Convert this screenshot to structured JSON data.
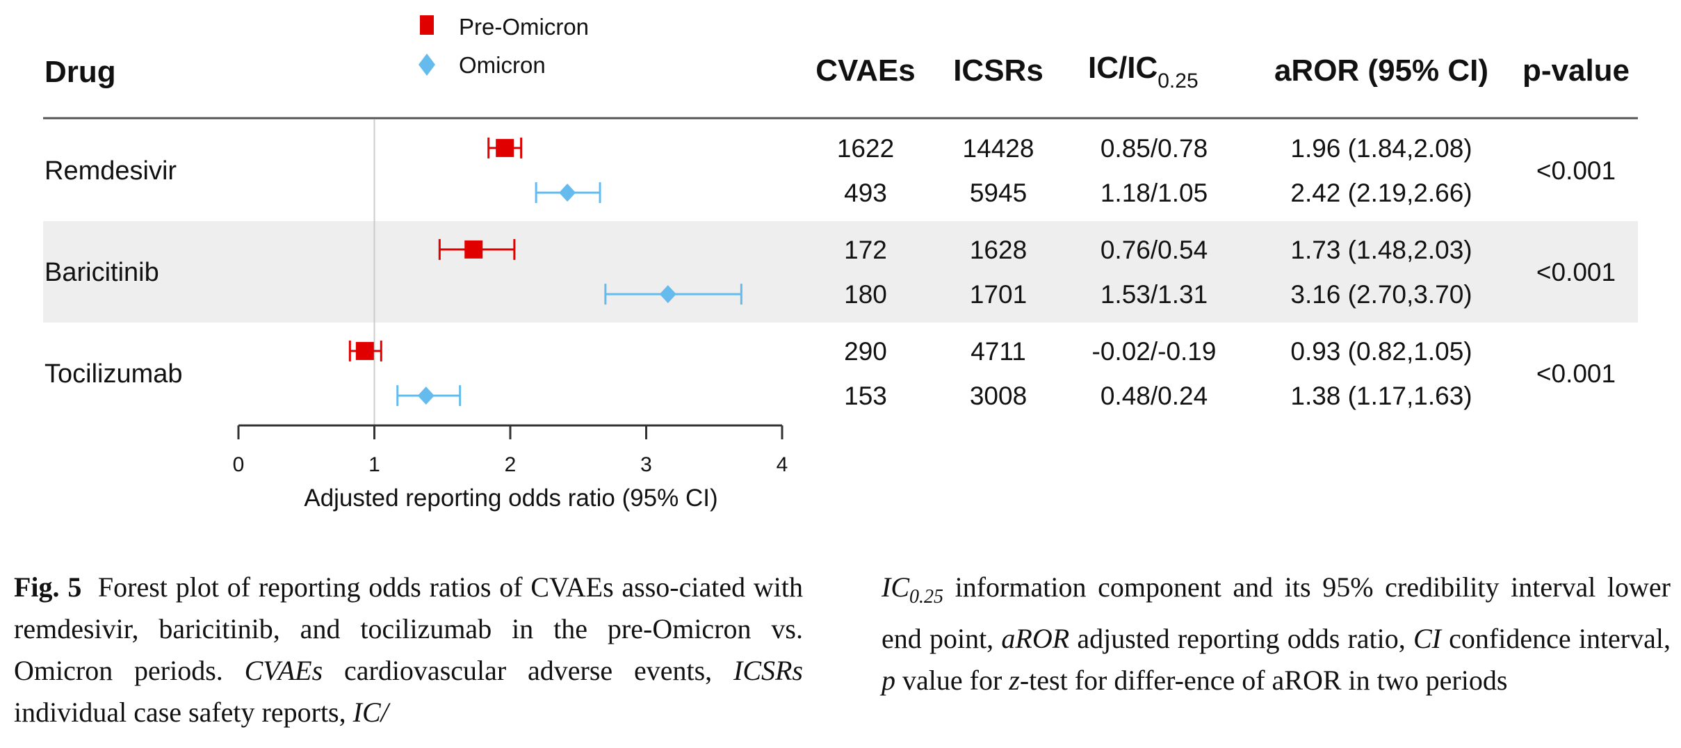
{
  "chart_data": {
    "type": "forest",
    "title": "",
    "xlabel": "Adjusted reporting odds ratio (95% CI)",
    "xlim": [
      0,
      4
    ],
    "xticks": [
      "0",
      "1",
      "2",
      "3",
      "4"
    ],
    "reference_line": 1,
    "legend": {
      "placement": "top",
      "entries": [
        {
          "name": "Pre-Omicron",
          "marker": "square",
          "color": "#e00000"
        },
        {
          "name": "Omicron",
          "marker": "diamond",
          "color": "#66bbee"
        }
      ]
    },
    "columns": {
      "drug": "Drug",
      "cvaes": "CVAEs",
      "icsrs": "ICSRs",
      "ic_main": "IC/IC",
      "ic_sub": "0.25",
      "aror": "aROR (95% CI)",
      "pvalue": "p-value"
    },
    "rows": [
      {
        "drug": "Remdesivir",
        "shaded": false,
        "pvalue": "<0.001",
        "series": [
          {
            "period": "Pre-Omicron",
            "cvaes": "1622",
            "icsrs": "14428",
            "ic": "0.85/0.78",
            "aror_text": "1.96 (1.84,2.08)",
            "est": 1.96,
            "lo": 1.84,
            "hi": 2.08
          },
          {
            "period": "Omicron",
            "cvaes": "493",
            "icsrs": "5945",
            "ic": "1.18/1.05",
            "aror_text": "2.42 (2.19,2.66)",
            "est": 2.42,
            "lo": 2.19,
            "hi": 2.66
          }
        ]
      },
      {
        "drug": "Baricitinib",
        "shaded": true,
        "pvalue": "<0.001",
        "series": [
          {
            "period": "Pre-Omicron",
            "cvaes": "172",
            "icsrs": "1628",
            "ic": "0.76/0.54",
            "aror_text": "1.73 (1.48,2.03)",
            "est": 1.73,
            "lo": 1.48,
            "hi": 2.03
          },
          {
            "period": "Omicron",
            "cvaes": "180",
            "icsrs": "1701",
            "ic": "1.53/1.31",
            "aror_text": "3.16 (2.70,3.70)",
            "est": 3.16,
            "lo": 2.7,
            "hi": 3.7
          }
        ]
      },
      {
        "drug": "Tocilizumab",
        "shaded": false,
        "pvalue": "<0.001",
        "series": [
          {
            "period": "Pre-Omicron",
            "cvaes": "290",
            "icsrs": "4711",
            "ic": "-0.02/-0.19",
            "aror_text": "0.93 (0.82,1.05)",
            "est": 0.93,
            "lo": 0.82,
            "hi": 1.05
          },
          {
            "period": "Omicron",
            "cvaes": "153",
            "icsrs": "3008",
            "ic": "0.48/0.24",
            "aror_text": "1.38 (1.17,1.63)",
            "est": 1.38,
            "lo": 1.17,
            "hi": 1.63
          }
        ]
      }
    ],
    "colors": {
      "shade": "#eeeeee",
      "rule": "#555555",
      "refline": "#cccccc",
      "axis": "#333333"
    }
  },
  "caption": {
    "fig_label": "Fig. 5",
    "left": [
      {
        "t": "Forest plot of reporting odds ratios of CVAEs asso-ciated with remdesivir, baricitinib, and tocilizumab in the pre-Omicron vs. Omicron periods. ",
        "i": false
      },
      {
        "t": "CVAEs",
        "i": true
      },
      {
        "t": " cardiovascular adverse events, ",
        "i": false
      },
      {
        "t": "ICSRs",
        "i": true
      },
      {
        "t": " individual case safety reports, ",
        "i": false
      },
      {
        "t": "IC/",
        "i": true
      }
    ],
    "right_ic": "IC",
    "right_ic_sub": "0.25",
    "right": [
      {
        "t": " information component and its 95% credibility interval lower end point, ",
        "i": false
      },
      {
        "t": "aROR",
        "i": true
      },
      {
        "t": " adjusted reporting odds ratio, ",
        "i": false
      },
      {
        "t": "CI",
        "i": true
      },
      {
        "t": " confidence interval, ",
        "i": false
      },
      {
        "t": "p",
        "i": true
      },
      {
        "t": " value for ",
        "i": false
      },
      {
        "t": "z",
        "i": true
      },
      {
        "t": "-test for differ-ence of aROR in two periods",
        "i": false
      }
    ]
  }
}
